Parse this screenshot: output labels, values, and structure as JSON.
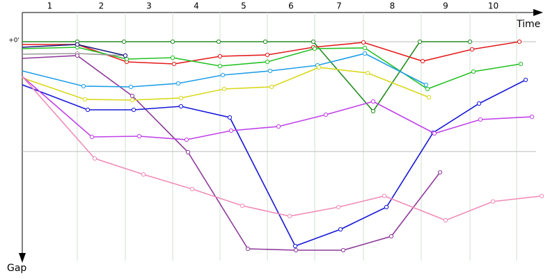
{
  "chart_data": {
    "type": "line",
    "x_label": "Time",
    "y_label": "Gap",
    "categories": [
      "1",
      "2",
      "3",
      "4",
      "5",
      "6",
      "7",
      "8",
      "9",
      "10"
    ],
    "lap_boundaries": [
      0,
      79,
      148,
      216,
      284,
      352,
      420,
      490,
      573,
      643,
      710
    ],
    "xlim": [
      0,
      748
    ],
    "ylim": [
      -42,
      315
    ],
    "yticks": [
      {
        "value": 0,
        "label": "+0'"
      },
      {
        "value": 158,
        "label": null
      }
    ],
    "grid": true,
    "series": [
      {
        "color": "#228b22",
        "x": [
          0,
          79,
          146,
          216,
          282,
          349,
          418,
          504,
          571,
          643
        ],
        "values": [
          0,
          0,
          0,
          0,
          0,
          0,
          0,
          100,
          0,
          0
        ]
      },
      {
        "color": "#e41a1c",
        "x": [
          0,
          79,
          150,
          218,
          284,
          352,
          418,
          490,
          575,
          646,
          714
        ],
        "values": [
          4,
          4,
          29,
          32,
          21,
          19,
          8,
          1,
          28,
          11,
          0
        ]
      },
      {
        "color": "#22c022",
        "x": [
          0,
          79,
          150,
          216,
          284,
          352,
          420,
          492,
          582,
          648,
          716
        ],
        "values": [
          10,
          8,
          25,
          23,
          35,
          29,
          10,
          9,
          68,
          43,
          32
        ]
      },
      {
        "color": "#999999",
        "x": [
          0,
          79,
          148
        ],
        "values": [
          18,
          17,
          20
        ]
      },
      {
        "color": "#1a1a80",
        "x": [
          0,
          79,
          148
        ],
        "values": [
          8,
          4,
          20
        ]
      },
      {
        "color": "#8e3a9a",
        "x": [
          0,
          79,
          158,
          238,
          324,
          393,
          461,
          530,
          600
        ],
        "values": [
          24,
          20,
          78,
          159,
          298,
          300,
          300,
          280,
          188
        ]
      },
      {
        "color": "#1e9ee6",
        "x": [
          0,
          88,
          156,
          224,
          288,
          356,
          424,
          492,
          580
        ],
        "values": [
          42,
          64,
          65,
          60,
          48,
          42,
          34,
          17,
          62
        ]
      },
      {
        "color": "#d8d81a",
        "x": [
          0,
          90,
          158,
          228,
          290,
          358,
          426,
          496,
          584
        ],
        "values": [
          52,
          83,
          84,
          81,
          68,
          65,
          37,
          45,
          80
        ]
      },
      {
        "color": "#1515d8",
        "x": [
          0,
          94,
          160,
          228,
          298,
          392,
          457,
          523,
          590,
          656,
          723
        ],
        "values": [
          62,
          98,
          98,
          93,
          109,
          294,
          270,
          238,
          131,
          89,
          55
        ]
      },
      {
        "color": "#c040e8",
        "x": [
          0,
          100,
          168,
          236,
          300,
          368,
          436,
          504,
          592,
          658,
          732
        ],
        "values": [
          50,
          137,
          136,
          141,
          128,
          122,
          105,
          86,
          132,
          112,
          108
        ]
      },
      {
        "color": "#f08cb8",
        "x": [
          0,
          104,
          174,
          244,
          316,
          384,
          454,
          520,
          608,
          676,
          746
        ],
        "values": [
          50,
          168,
          191,
          212,
          236,
          251,
          238,
          222,
          257,
          230,
          222
        ]
      }
    ]
  }
}
